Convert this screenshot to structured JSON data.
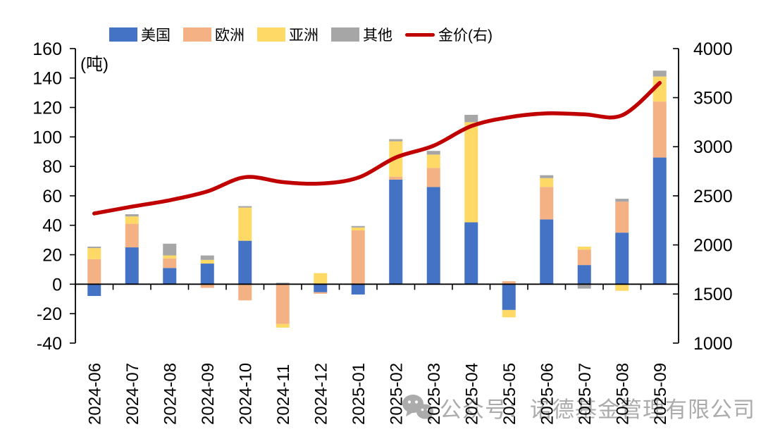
{
  "page": {
    "background": "#ffffff"
  },
  "unit_label": "(吨)",
  "watermark": {
    "icon": "wechat-icon",
    "text": "公众号：诺德基金管理有限公司",
    "color": "#ababab"
  },
  "legend": {
    "position": "top"
  },
  "chart_data": {
    "type": "combo_stacked_bar_line",
    "title": "",
    "categories": [
      "2024-06",
      "2024-07",
      "2024-08",
      "2024-09",
      "2024-10",
      "2024-11",
      "2024-12",
      "2025-01",
      "2025-02",
      "2025-03",
      "2025-04",
      "2025-05",
      "2025-06",
      "2025-07",
      "2025-08",
      "2025-09"
    ],
    "series": [
      {
        "key": "us",
        "name": "美国",
        "type": "bar",
        "color": "#4472C4",
        "axis": "left",
        "values": [
          -8,
          25,
          11,
          14,
          29.5,
          0,
          -5.5,
          -7,
          71,
          66,
          42,
          -17.5,
          44,
          13,
          35,
          86
        ]
      },
      {
        "key": "europe",
        "name": "欧洲",
        "type": "bar",
        "color": "#F4B183",
        "axis": "left",
        "values": [
          17,
          16,
          6.5,
          -2.5,
          -11,
          -27,
          -1,
          36.5,
          2,
          13,
          0,
          2,
          22,
          10.5,
          21,
          38
        ]
      },
      {
        "key": "asia",
        "name": "亚洲",
        "type": "bar",
        "color": "#FFD966",
        "axis": "left",
        "values": [
          7.5,
          5,
          2,
          2.5,
          22.5,
          -2.5,
          7.5,
          2,
          24,
          9,
          68,
          -5,
          6,
          2,
          -4.5,
          17
        ]
      },
      {
        "key": "other",
        "name": "其他",
        "type": "bar",
        "color": "#A6A6A6",
        "axis": "left",
        "values": [
          1,
          1.5,
          8,
          3,
          1,
          1,
          0,
          1,
          1.5,
          2.5,
          5,
          0,
          2,
          -3,
          2,
          4
        ]
      },
      {
        "key": "gold-price",
        "name": "金价(右)",
        "type": "line",
        "color": "#C00000",
        "axis": "right",
        "values": [
          2320,
          2390,
          2455,
          2545,
          2690,
          2640,
          2625,
          2685,
          2890,
          3010,
          3210,
          3300,
          3340,
          3330,
          3320,
          3650
        ]
      }
    ],
    "left_axis": {
      "label": "(吨)",
      "min": -40,
      "max": 160,
      "step": 20,
      "ticks": [
        160,
        140,
        120,
        100,
        80,
        60,
        40,
        20,
        0,
        -20,
        -40
      ]
    },
    "right_axis": {
      "min": 1000,
      "max": 4000,
      "step": 500,
      "ticks": [
        4000,
        3500,
        3000,
        2500,
        2000,
        1500,
        1000
      ]
    },
    "gridlines": false,
    "bar_stacked": true
  }
}
